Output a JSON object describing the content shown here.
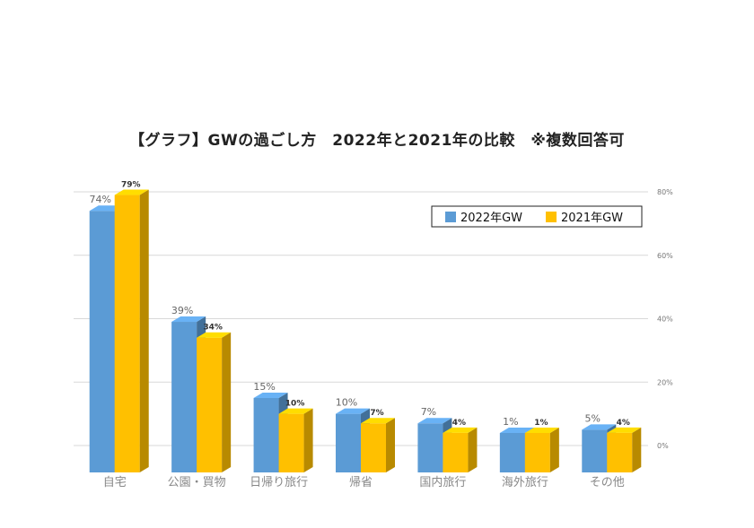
{
  "chart_data": {
    "type": "bar",
    "title": "【グラフ】GWの過ごし方　2022年と2021年の比較　※複数回答可",
    "categories": [
      "自宅",
      "公園・買物",
      "日帰り旅行",
      "帰省",
      "国内旅行",
      "海外旅行",
      "その他"
    ],
    "series": [
      {
        "name": "2022年GW",
        "values": [
          74,
          39,
          15,
          10,
          7,
          1,
          5
        ],
        "labels": [
          "74%",
          "39%",
          "15%",
          "10%",
          "7%",
          "1%",
          "5%"
        ],
        "color": "#5b9bd5"
      },
      {
        "name": "2021年GW",
        "values": [
          79,
          34,
          10,
          7,
          4,
          1,
          4
        ],
        "labels": [
          "79%",
          "34%",
          "10%",
          "7%",
          "4%",
          "1%",
          "4%"
        ],
        "color": "#ffc000"
      }
    ],
    "y_ticks": [
      "0%",
      "20%",
      "40%",
      "60%",
      "80%"
    ],
    "ylim": [
      0,
      80
    ],
    "axis_position": "right",
    "legend_position": "top-right",
    "grid": true
  }
}
